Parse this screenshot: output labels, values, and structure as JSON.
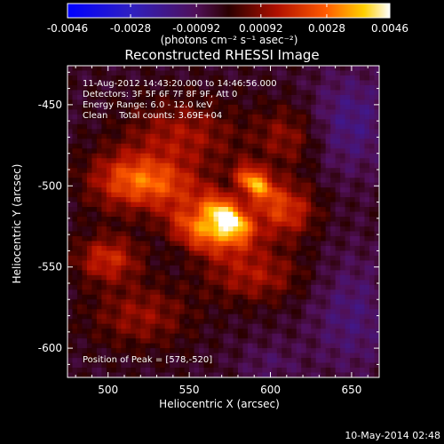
{
  "chart_data": {
    "type": "heatmap",
    "title": "Reconstructed RHESSI Image",
    "xlabel": "Heliocentric X (arcsec)",
    "ylabel": "Heliocentric Y (arcsec)",
    "xlim": [
      475,
      667
    ],
    "ylim": [
      -618,
      -426
    ],
    "x_ticks": [
      "500",
      "550",
      "600",
      "650"
    ],
    "x_tick_values": [
      500,
      550,
      600,
      650
    ],
    "y_ticks": [
      "-450",
      "-500",
      "-550",
      "-600"
    ],
    "y_tick_values": [
      -450,
      -500,
      -550,
      -600
    ],
    "colorbar": {
      "ticks": [
        "-0.0046",
        "-0.0028",
        "-0.00092",
        "0.00092",
        "0.0028",
        "0.0046"
      ],
      "tick_values": [
        -0.0046,
        -0.0028,
        -0.00092,
        0.00092,
        0.0028,
        0.0046
      ],
      "unit_label": "(photons cm⁻² s⁻¹ asec⁻²)",
      "range": [
        -0.0046,
        0.0046
      ]
    },
    "annotations": [
      "11-Aug-2012 14:43:20.000 to 14:46:56.000",
      "Detectors: 3F 5F 6F 7F 8F 9F, Att 0",
      "Energy Range: 6.0 - 12.0 keV",
      "Clean    Total counts: 3.69E+04"
    ],
    "peak_label": "Position of Peak = [578,-520]",
    "peak": [
      578,
      -520
    ],
    "sources": [
      {
        "x": 574,
        "y": -520,
        "sx": 12,
        "sy": 7,
        "amp": 0.0046,
        "angle": -40
      },
      {
        "x": 590,
        "y": -498,
        "sx": 9,
        "sy": 6,
        "amp": 0.0035,
        "angle": -40
      },
      {
        "x": 558,
        "y": -528,
        "sx": 16,
        "sy": 9,
        "amp": 0.0032,
        "angle": -25
      },
      {
        "x": 608,
        "y": -515,
        "sx": 14,
        "sy": 12,
        "amp": 0.0024,
        "angle": 0
      },
      {
        "x": 530,
        "y": -498,
        "sx": 22,
        "sy": 10,
        "amp": 0.002,
        "angle": -10
      },
      {
        "x": 545,
        "y": -470,
        "sx": 25,
        "sy": 16,
        "amp": 0.0016,
        "angle": 0
      },
      {
        "x": 500,
        "y": -545,
        "sx": 14,
        "sy": 10,
        "amp": 0.0021,
        "angle": 0
      },
      {
        "x": 510,
        "y": -500,
        "sx": 18,
        "sy": 14,
        "amp": 0.0015,
        "angle": 0
      },
      {
        "x": 590,
        "y": -555,
        "sx": 22,
        "sy": 12,
        "amp": 0.0016,
        "angle": 0
      },
      {
        "x": 520,
        "y": -580,
        "sx": 22,
        "sy": 14,
        "amp": 0.0014,
        "angle": 0
      },
      {
        "x": 610,
        "y": -470,
        "sx": 14,
        "sy": 14,
        "amp": 0.0013,
        "angle": 0
      }
    ],
    "negative_regions": [
      {
        "x": 650,
        "y": -460,
        "sx": 18,
        "sy": 22,
        "amp": -0.0012
      },
      {
        "x": 650,
        "y": -580,
        "sx": 18,
        "sy": 26,
        "amp": -0.001
      },
      {
        "x": 600,
        "y": -610,
        "sx": 14,
        "sy": 10,
        "amp": -0.0006
      }
    ]
  },
  "footer": {
    "date": "10-May-2014 02:48"
  }
}
